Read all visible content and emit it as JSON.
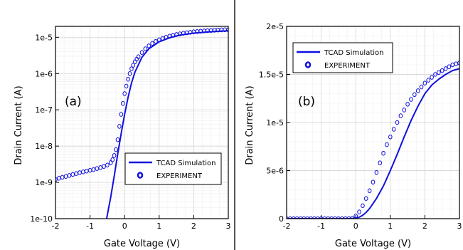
{
  "colors": {
    "series": "#1010e0",
    "frame": "#000000",
    "grid_major": "#d9d9d9",
    "grid_minor": "#efefef",
    "divider": "#555555"
  },
  "chart_data": [
    {
      "type": "line",
      "panel_label": "(a)",
      "xlabel": "Gate Voltage (V)",
      "ylabel": "Drain Current (A)",
      "xlim": [
        -2,
        3
      ],
      "ylim": [
        1e-10,
        2e-05
      ],
      "yscale": "log",
      "grid": true,
      "xtick_labels": [
        "-2",
        "-1",
        "0",
        "1",
        "2",
        "3"
      ],
      "ytick_labels": [
        "1e-10",
        "1e-9",
        "1e-8",
        "1e-7",
        "1e-6",
        "1e-5"
      ],
      "legend": {
        "placement": "lower-right",
        "entries": [
          "TCAD Simulation",
          "EXPERIMENT"
        ]
      },
      "series": [
        {
          "name": "TCAD Simulation",
          "style": "line",
          "x": [
            -0.52,
            -0.4,
            -0.3,
            -0.2,
            -0.1,
            0.0,
            0.1,
            0.2,
            0.3,
            0.5,
            0.7,
            1.0,
            1.3,
            1.6,
            2.0,
            2.4,
            2.8,
            3.0
          ],
          "y": [
            1e-10,
            4e-10,
            1.5e-09,
            6e-09,
            2.2e-08,
            7.5e-08,
            2.2e-07,
            5.5e-07,
            1.1e-06,
            2.8e-06,
            4.8e-06,
            7.5e-06,
            9.7e-06,
            1.15e-05,
            1.3e-05,
            1.4e-05,
            1.48e-05,
            1.5e-05
          ]
        },
        {
          "name": "EXPERIMENT",
          "style": "markers",
          "x": [
            -2.0,
            -1.9,
            -1.8,
            -1.7,
            -1.6,
            -1.5,
            -1.4,
            -1.3,
            -1.2,
            -1.1,
            -1.0,
            -0.9,
            -0.8,
            -0.7,
            -0.6,
            -0.5,
            -0.4,
            -0.35,
            -0.3,
            -0.25,
            -0.2,
            -0.15,
            -0.1,
            -0.05,
            0.0,
            0.05,
            0.1,
            0.15,
            0.2,
            0.25,
            0.3,
            0.35,
            0.4,
            0.5,
            0.6,
            0.7,
            0.8,
            0.9,
            1.0,
            1.1,
            1.2,
            1.3,
            1.4,
            1.5,
            1.6,
            1.7,
            1.8,
            1.9,
            2.0,
            2.1,
            2.2,
            2.3,
            2.4,
            2.5,
            2.6,
            2.7,
            2.8,
            2.9,
            3.0
          ],
          "y": [
            1.2e-09,
            1.3e-09,
            1.38e-09,
            1.46e-09,
            1.55e-09,
            1.65e-09,
            1.75e-09,
            1.85e-09,
            1.95e-09,
            2.05e-09,
            2.15e-09,
            2.25e-09,
            2.4e-09,
            2.55e-09,
            2.75e-09,
            3e-09,
            3.5e-09,
            4.2e-09,
            5.5e-09,
            8e-09,
            1.5e-08,
            3.5e-08,
            7.5e-08,
            1.5e-07,
            2.8e-07,
            4.5e-07,
            7e-07,
            1e-06,
            1.35e-06,
            1.7e-06,
            2.1e-06,
            2.5e-06,
            2.9e-06,
            3.8e-06,
            4.8e-06,
            5.8e-06,
            6.8e-06,
            7.7e-06,
            8.5e-06,
            9.3e-06,
            1e-05,
            1.07e-05,
            1.13e-05,
            1.19e-05,
            1.24e-05,
            1.29e-05,
            1.33e-05,
            1.37e-05,
            1.41e-05,
            1.44e-05,
            1.47e-05,
            1.5e-05,
            1.52e-05,
            1.54e-05,
            1.56e-05,
            1.58e-05,
            1.6e-05,
            1.61e-05,
            1.62e-05
          ]
        }
      ]
    },
    {
      "type": "line",
      "panel_label": "(b)",
      "xlabel": "Gate Voltage (V)",
      "ylabel": "Drain Current (A)",
      "xlim": [
        -2,
        3
      ],
      "ylim": [
        0,
        2e-05
      ],
      "yscale": "linear",
      "grid": true,
      "xtick_labels": [
        "-2",
        "-1",
        "0",
        "1",
        "2",
        "3"
      ],
      "ytick_labels": [
        "0",
        "5e-6",
        "1e-5",
        "1.5e-5",
        "2e-5"
      ],
      "legend": {
        "placement": "top-left",
        "entries": [
          "TCAD Simulation",
          "EXPERIMENT"
        ]
      },
      "series": [
        {
          "name": "TCAD Simulation",
          "style": "line",
          "x": [
            -2.0,
            -1.0,
            -0.2,
            0.0,
            0.1,
            0.2,
            0.3,
            0.4,
            0.6,
            0.8,
            1.0,
            1.2,
            1.4,
            1.6,
            1.8,
            2.0,
            2.2,
            2.4,
            2.6,
            2.8,
            3.0
          ],
          "y": [
            0,
            0,
            0,
            4e-08,
            1.5e-07,
            3.5e-07,
            6.5e-07,
            1.05e-06,
            2.1e-06,
            3.4e-06,
            5e-06,
            6.7e-06,
            8.5e-06,
            1.02e-05,
            1.17e-05,
            1.3e-05,
            1.39e-05,
            1.45e-05,
            1.5e-05,
            1.54e-05,
            1.56e-05
          ]
        },
        {
          "name": "EXPERIMENT",
          "style": "markers",
          "x": [
            -2.0,
            -1.9,
            -1.8,
            -1.7,
            -1.6,
            -1.5,
            -1.4,
            -1.3,
            -1.2,
            -1.1,
            -1.0,
            -0.9,
            -0.8,
            -0.7,
            -0.6,
            -0.5,
            -0.4,
            -0.3,
            -0.2,
            -0.1,
            0.0,
            0.1,
            0.2,
            0.3,
            0.4,
            0.5,
            0.6,
            0.7,
            0.8,
            0.9,
            1.0,
            1.1,
            1.2,
            1.3,
            1.4,
            1.5,
            1.6,
            1.7,
            1.8,
            1.9,
            2.0,
            2.1,
            2.2,
            2.3,
            2.4,
            2.5,
            2.6,
            2.7,
            2.8,
            2.9,
            3.0
          ],
          "y": [
            0,
            0,
            0,
            0,
            0,
            0,
            0,
            0,
            0,
            0,
            0,
            0,
            0,
            0,
            0,
            0,
            0,
            0,
            1e-08,
            3e-08,
            2.8e-07,
            7e-07,
            1.35e-06,
            2.1e-06,
            2.9e-06,
            3.8e-06,
            4.8e-06,
            5.8e-06,
            6.8e-06,
            7.7e-06,
            8.5e-06,
            9.3e-06,
            1e-05,
            1.07e-05,
            1.13e-05,
            1.19e-05,
            1.24e-05,
            1.29e-05,
            1.33e-05,
            1.37e-05,
            1.41e-05,
            1.44e-05,
            1.47e-05,
            1.5e-05,
            1.52e-05,
            1.54e-05,
            1.56e-05,
            1.58e-05,
            1.6e-05,
            1.61e-05,
            1.62e-05
          ]
        }
      ]
    }
  ]
}
